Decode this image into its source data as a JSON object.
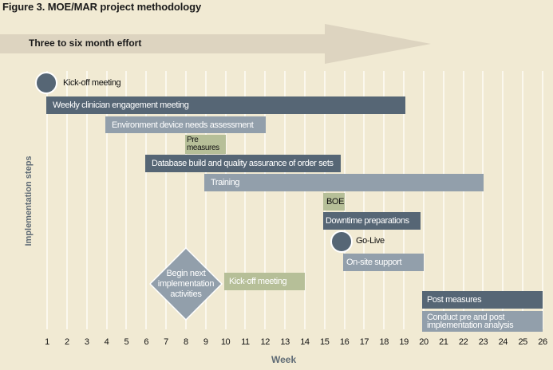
{
  "title": "Figure 3. MOE/MAR project methodology",
  "arrow": {
    "label": "Three to six month effort",
    "color": "#ddd4c0"
  },
  "axes": {
    "xlabel": "Week",
    "ylabel": "Implementation steps",
    "ticks": [
      "1",
      "2",
      "3",
      "4",
      "5",
      "6",
      "7",
      "8",
      "9",
      "10",
      "11",
      "12",
      "13",
      "14",
      "15",
      "16",
      "17",
      "18",
      "19",
      "20",
      "21",
      "22",
      "23",
      "24",
      "25",
      "26"
    ]
  },
  "colors": {
    "background": "#f1ead3",
    "dark": "#566675",
    "light": "#929fab",
    "green": "#b6bf98",
    "grid": "#fbf8ee"
  },
  "milestones": {
    "kickoff": "Kick-off meeting",
    "golive": "Go-Live",
    "next": "Begin next implementation activities"
  },
  "tasks": {
    "weekly": "Weekly clinician engagement meeting",
    "env": "Environment device needs assessment",
    "pre": "Pre measures",
    "db": "Database build and quality assurance of order sets",
    "training": "Training",
    "boe": "BOE",
    "downtime": "Downtime preparations",
    "onsite": "On-site support",
    "kickoff2": "Kick-off meeting",
    "post": "Post measures",
    "analysis": "Conduct pre and post implementation analysis"
  },
  "chart_data": {
    "type": "gantt",
    "title": "Figure 3. MOE/MAR project methodology",
    "xlabel": "Week",
    "ylabel": "Implementation steps",
    "xlim": [
      1,
      26
    ],
    "items": [
      {
        "label": "Kick-off meeting",
        "kind": "milestone",
        "week": 1
      },
      {
        "label": "Weekly clinician engagement meeting",
        "start": 1,
        "end": 19
      },
      {
        "label": "Environment device needs assessment",
        "start": 4,
        "end": 12
      },
      {
        "label": "Pre measures",
        "start": 8,
        "end": 10
      },
      {
        "label": "Database build and quality assurance of order sets",
        "start": 6,
        "end": 16
      },
      {
        "label": "Training",
        "start": 9,
        "end": 23
      },
      {
        "label": "BOE",
        "start": 15,
        "end": 16
      },
      {
        "label": "Downtime preparations",
        "start": 15,
        "end": 20
      },
      {
        "label": "Go-Live",
        "kind": "milestone",
        "week": 16
      },
      {
        "label": "On-site support",
        "start": 16,
        "end": 20
      },
      {
        "label": "Begin next implementation activities",
        "kind": "decision",
        "week": 8
      },
      {
        "label": "Kick-off meeting",
        "start": 10,
        "end": 14
      },
      {
        "label": "Post measures",
        "start": 20,
        "end": 26
      },
      {
        "label": "Conduct pre and post implementation analysis",
        "start": 20,
        "end": 26
      }
    ],
    "annotation": "Three to six month effort (weeks 1–19)"
  }
}
